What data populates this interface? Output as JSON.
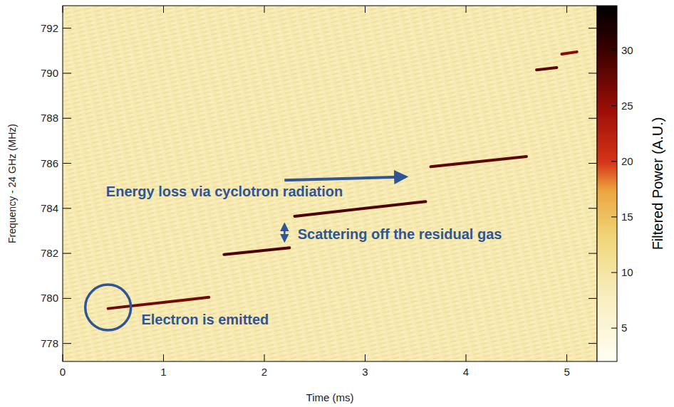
{
  "chart_data": {
    "type": "spectrogram",
    "x_label": "Time (ms)",
    "y_label": "Frequency - 24 GHz (MHz)",
    "xlim": [
      0,
      5.3
    ],
    "ylim": [
      777.2,
      793
    ],
    "xticks": [
      0,
      1,
      2,
      3,
      4,
      5
    ],
    "yticks": [
      778,
      780,
      782,
      784,
      786,
      788,
      790,
      792
    ],
    "background_power": 9,
    "series": [
      {
        "x": [
          0.45,
          1.45
        ],
        "values": [
          779.55,
          780.05
        ],
        "power": 27
      },
      {
        "x": [
          1.6,
          2.25
        ],
        "values": [
          781.95,
          782.25
        ],
        "power": 29
      },
      {
        "x": [
          2.3,
          3.6
        ],
        "values": [
          783.65,
          784.3
        ],
        "power": 29
      },
      {
        "x": [
          3.65,
          4.6
        ],
        "values": [
          785.85,
          786.3
        ],
        "power": 28
      },
      {
        "x": [
          4.7,
          4.9
        ],
        "values": [
          790.15,
          790.25
        ],
        "power": 28
      },
      {
        "x": [
          4.95,
          5.1
        ],
        "values": [
          790.85,
          790.95
        ],
        "power": 26
      }
    ],
    "colorbar": {
      "label": "Filtered Power (A.U.)",
      "lim": [
        2,
        34
      ],
      "ticks": [
        5,
        10,
        15,
        20,
        25,
        30
      ]
    },
    "annotations": [
      {
        "text": "Electron is emitted",
        "x": 0.78,
        "y": 779.05,
        "marker": "circle",
        "marker_x": 0.45,
        "marker_y": 779.6
      },
      {
        "text": "Energy loss via cyclotron radiation",
        "x": 0.43,
        "y": 784.75,
        "marker": "arrow",
        "marker_x": [
          2.2,
          3.4
        ],
        "marker_y": [
          785.25,
          785.4
        ]
      },
      {
        "text": "Scattering off the residual gas",
        "x": 2.33,
        "y": 782.85,
        "marker": "double_arrow",
        "marker_x": [
          2.2,
          2.2
        ],
        "marker_y": [
          782.55,
          783.3
        ]
      }
    ]
  }
}
